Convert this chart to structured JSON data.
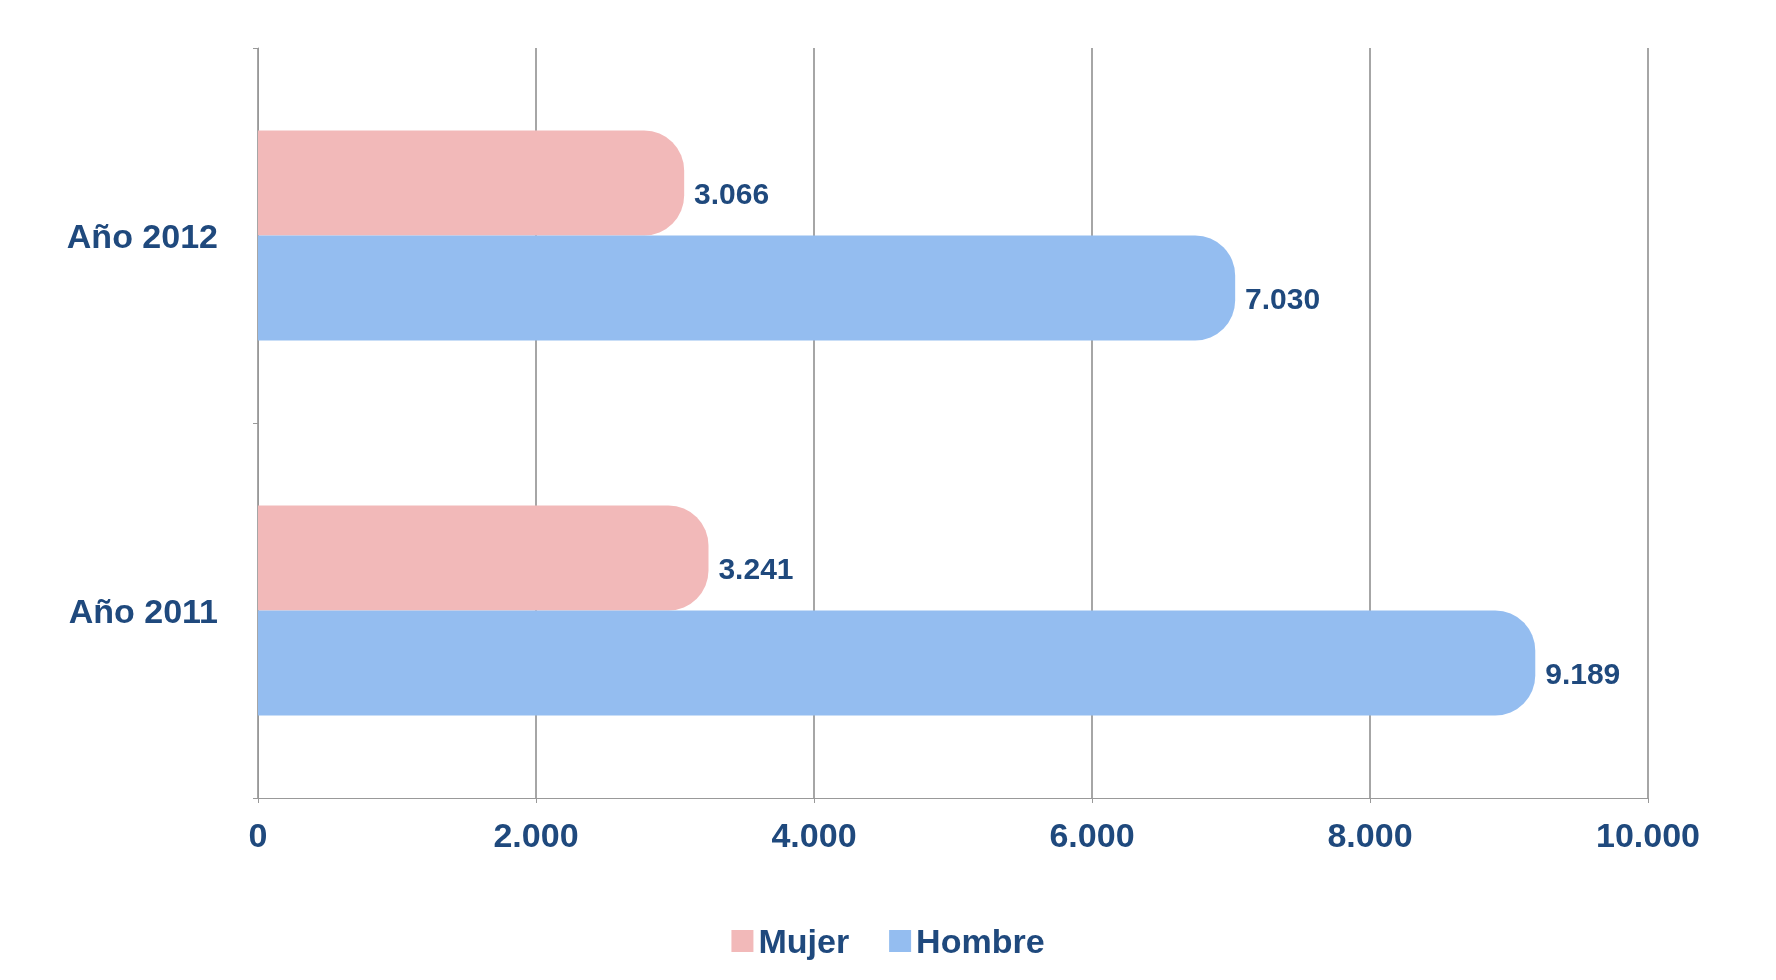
{
  "chart_data": {
    "type": "bar",
    "orientation": "horizontal",
    "categories": [
      "Año 2012",
      "Año 2011"
    ],
    "series": [
      {
        "name": "Mujer",
        "color": "#f2b9b9",
        "values": [
          3066,
          3241
        ],
        "value_labels": [
          "3.066",
          "3.241"
        ]
      },
      {
        "name": "Hombre",
        "color": "#94bdf0",
        "values": [
          7030,
          9189
        ],
        "value_labels": [
          "7.030",
          "9.189"
        ]
      }
    ],
    "xlim": [
      0,
      10000
    ],
    "xticks": [
      0,
      {
        "value": 2000,
        "label": "2.000"
      },
      {
        "value": 4000,
        "label": "4.000"
      },
      {
        "value": 6000,
        "label": "6.000"
      },
      {
        "value": 8000,
        "label": "8.000"
      },
      {
        "value": 10000,
        "label": "10.000"
      }
    ],
    "grid": "x",
    "legend": "bottom"
  }
}
